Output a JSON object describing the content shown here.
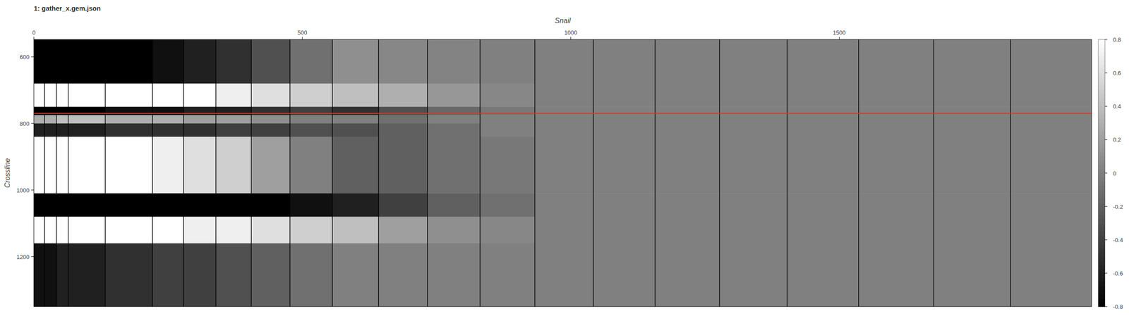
{
  "chart_data": {
    "type": "heatmap",
    "title": "1: gather_x.gem.json",
    "x_label": "Snail",
    "y_label": "Crossline",
    "xlim": [
      0,
      1970
    ],
    "ylim": [
      548,
      1350
    ],
    "xticks": [
      0,
      500,
      1000,
      1500
    ],
    "yticks": [
      600,
      800,
      1000,
      1200
    ],
    "x_edges": [
      0,
      20,
      42,
      64,
      133,
      221,
      279,
      339,
      405,
      477,
      556,
      642,
      733,
      831,
      933,
      1042,
      1157,
      1277,
      1403,
      1536,
      1676,
      1819,
      1970
    ],
    "y_edges": [
      548,
      680,
      750,
      775,
      800,
      840,
      1010,
      1080,
      1160,
      1350
    ],
    "cells": [
      [
        -0.8,
        -0.8,
        -0.8,
        -0.8,
        -0.8,
        -0.7,
        -0.6,
        -0.5,
        -0.3,
        -0.1,
        0.1,
        0.05,
        0.02,
        0,
        0,
        0,
        0,
        0,
        0,
        0,
        0,
        0
      ],
      [
        0.8,
        0.8,
        0.8,
        0.8,
        0.8,
        0.8,
        0.8,
        0.7,
        0.6,
        0.5,
        0.4,
        0.3,
        0.15,
        0.05,
        0,
        0,
        0,
        0,
        0,
        0,
        0,
        0
      ],
      [
        -0.8,
        -0.8,
        -0.8,
        -0.8,
        -0.7,
        -0.7,
        -0.6,
        -0.6,
        -0.5,
        -0.4,
        -0.5,
        -0.3,
        -0.15,
        -0.05,
        0,
        0,
        0,
        0,
        0,
        0,
        0,
        0
      ],
      [
        0.3,
        0.3,
        0.4,
        0.4,
        0.3,
        0.3,
        0.2,
        0.2,
        0.1,
        0,
        0,
        -0.1,
        0,
        0,
        0,
        0,
        0,
        0,
        0,
        0,
        0,
        0
      ],
      [
        -0.6,
        -0.6,
        -0.6,
        -0.6,
        -0.5,
        -0.5,
        -0.5,
        -0.4,
        -0.4,
        -0.3,
        -0.3,
        -0.2,
        -0.1,
        0,
        0,
        0,
        0,
        0,
        0,
        0,
        0,
        0
      ],
      [
        0.8,
        0.8,
        0.8,
        0.8,
        0.8,
        0.7,
        0.6,
        0.5,
        0.2,
        0,
        -0.2,
        -0.2,
        -0.1,
        -0.05,
        0,
        0,
        0,
        0,
        0,
        0,
        0,
        0
      ],
      [
        -0.8,
        -0.8,
        -0.8,
        -0.8,
        -0.8,
        -0.8,
        -0.8,
        -0.8,
        -0.8,
        -0.7,
        -0.6,
        -0.4,
        -0.2,
        -0.1,
        0,
        0,
        0,
        0,
        0,
        0,
        0,
        0
      ],
      [
        0.8,
        0.8,
        0.8,
        0.8,
        0.8,
        0.8,
        0.7,
        0.7,
        0.6,
        0.5,
        0.4,
        0.2,
        0.1,
        0.05,
        0,
        0,
        0,
        0,
        0,
        0,
        0,
        0
      ],
      [
        -0.7,
        -0.7,
        -0.6,
        -0.6,
        -0.5,
        -0.4,
        -0.4,
        -0.3,
        -0.2,
        -0.1,
        0,
        0,
        0,
        0,
        0,
        0,
        0,
        0,
        0,
        0,
        0,
        0
      ]
    ],
    "color_range": [
      -0.8,
      0.8
    ],
    "color_ticks": [
      -0.8,
      -0.6,
      -0.4,
      -0.2,
      0,
      0.2,
      0.4,
      0.6,
      0.8
    ],
    "reference_line": {
      "y": 770,
      "color": "#e03030"
    }
  }
}
